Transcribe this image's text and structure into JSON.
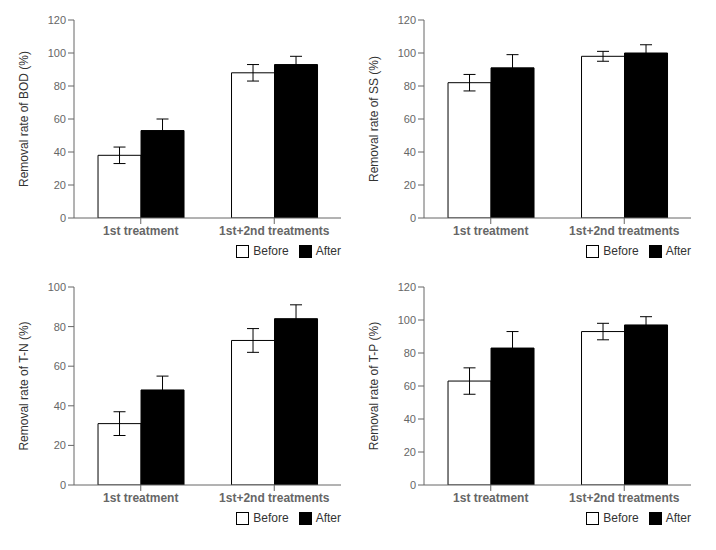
{
  "chart_data": [
    {
      "type": "bar",
      "ylabel": "Removal rate of BOD (%)",
      "categories": [
        "1st treatment",
        "1st+2nd treatments"
      ],
      "series": [
        {
          "name": "Before",
          "color": "white",
          "values": [
            38,
            88
          ],
          "errors": [
            5,
            5
          ]
        },
        {
          "name": "After",
          "color": "black",
          "values": [
            53,
            93
          ],
          "errors": [
            7,
            5
          ]
        }
      ],
      "ylim": [
        0,
        120
      ],
      "yticks": [
        0,
        20,
        40,
        60,
        80,
        100,
        120
      ],
      "grid": false,
      "legend": "lower right"
    },
    {
      "type": "bar",
      "ylabel": "Removal rate of SS (%)",
      "categories": [
        "1st treatment",
        "1st+2nd treatments"
      ],
      "series": [
        {
          "name": "Before",
          "color": "white",
          "values": [
            82,
            98
          ],
          "errors": [
            5,
            3
          ]
        },
        {
          "name": "After",
          "color": "black",
          "values": [
            91,
            100
          ],
          "errors": [
            8,
            5
          ]
        }
      ],
      "ylim": [
        0,
        120
      ],
      "yticks": [
        0,
        20,
        40,
        60,
        80,
        100,
        120
      ],
      "grid": false,
      "legend": "lower right"
    },
    {
      "type": "bar",
      "ylabel": "Removal rate of T-N (%)",
      "categories": [
        "1st treatment",
        "1st+2nd treatments"
      ],
      "series": [
        {
          "name": "Before",
          "color": "white",
          "values": [
            31,
            73
          ],
          "errors": [
            6,
            6
          ]
        },
        {
          "name": "After",
          "color": "black",
          "values": [
            48,
            84
          ],
          "errors": [
            7,
            7
          ]
        }
      ],
      "ylim": [
        0,
        100
      ],
      "yticks": [
        0,
        20,
        40,
        60,
        80,
        100
      ],
      "grid": false,
      "legend": "lower right"
    },
    {
      "type": "bar",
      "ylabel": "Removal rate of T-P (%)",
      "categories": [
        "1st treatment",
        "1st+2nd treatments"
      ],
      "series": [
        {
          "name": "Before",
          "color": "white",
          "values": [
            63,
            93
          ],
          "errors": [
            8,
            5
          ]
        },
        {
          "name": "After",
          "color": "black",
          "values": [
            83,
            97
          ],
          "errors": [
            10,
            5
          ]
        }
      ],
      "ylim": [
        0,
        120
      ],
      "yticks": [
        0,
        20,
        40,
        60,
        80,
        100,
        120
      ],
      "grid": false,
      "legend": "lower right"
    }
  ]
}
